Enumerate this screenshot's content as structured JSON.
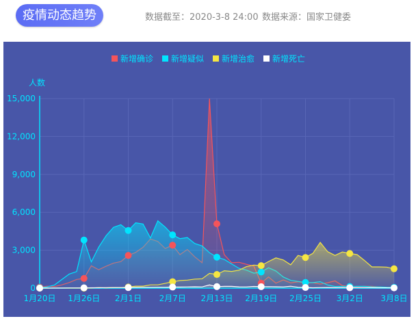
{
  "header": {
    "title": "疫情动态趋势",
    "updated": "数据截至：2020-3-8 24:00",
    "source": "数据来源：国家卫健委"
  },
  "colors": {
    "background": "#4856a8",
    "axis": "#00e5ff",
    "grid": "#5866b6"
  },
  "chart_data": {
    "type": "area",
    "ylabel": "人数",
    "ylim": [
      0,
      15000
    ],
    "yticks": [
      "0",
      "3,000",
      "6,000",
      "9,000",
      "12,000",
      "15,000"
    ],
    "xticks": [
      "1月20日",
      "1月26日",
      "2月1日",
      "2月7日",
      "2月13日",
      "2月19日",
      "2月25日",
      "3月2日",
      "3月8日"
    ],
    "x_start": "2020-01-20",
    "x_end": "2020-03-08",
    "grid": true,
    "legend": "top-center",
    "series": [
      {
        "name": "新增确诊",
        "color": "#f5545a",
        "values": [
          77,
          149,
          131,
          259,
          444,
          688,
          769,
          1771,
          1459,
          1737,
          1982,
          2102,
          2590,
          2829,
          3235,
          3887,
          3694,
          3143,
          3399,
          2656,
          3062,
          2478,
          2015,
          15152,
          5090,
          2641,
          2009,
          2048,
          1886,
          1749,
          394,
          889,
          397,
          648,
          409,
          508,
          406,
          433,
          327,
          427,
          573,
          202,
          125,
          119,
          139,
          143,
          99,
          44,
          40
        ]
      },
      {
        "name": "新增疑似",
        "color": "#00e5ff",
        "values": [
          27,
          100,
          250,
          680,
          1118,
          1309,
          3806,
          2077,
          3248,
          4148,
          4812,
          5019,
          4562,
          5173,
          5072,
          3971,
          5328,
          4833,
          4214,
          3916,
          4008,
          3536,
          3342,
          2807,
          2450,
          2277,
          1918,
          1563,
          1432,
          1185,
          1277,
          1614,
          1361,
          882,
          620,
          530,
          452,
          439,
          508,
          248,
          132,
          141,
          129,
          143,
          143,
          102,
          99,
          68,
          60
        ]
      },
      {
        "name": "新增治愈",
        "color": "#f5e642",
        "values": [
          0,
          0,
          3,
          6,
          3,
          11,
          2,
          9,
          43,
          21,
          47,
          43,
          85,
          157,
          157,
          262,
          261,
          387,
          510,
          600,
          632,
          716,
          744,
          1171,
          1081,
          1373,
          1323,
          1425,
          1701,
          1824,
          1779,
          2109,
          2393,
          2230,
          1846,
          2589,
          2425,
          2750,
          3622,
          2885,
          2589,
          2867,
          2742,
          2652,
          2189,
          1681,
          1678,
          1661,
          1535
        ]
      },
      {
        "name": "新增死亡",
        "color": "#ffffff",
        "values": [
          0,
          3,
          8,
          8,
          16,
          15,
          24,
          26,
          26,
          38,
          43,
          46,
          45,
          57,
          64,
          65,
          73,
          73,
          86,
          89,
          97,
          108,
          97,
          254,
          121,
          143,
          142,
          105,
          98,
          136,
          114,
          118,
          109,
          97,
          150,
          71,
          52,
          29,
          44,
          47,
          35,
          42,
          31,
          38,
          31,
          30,
          28,
          27,
          22
        ]
      }
    ]
  }
}
